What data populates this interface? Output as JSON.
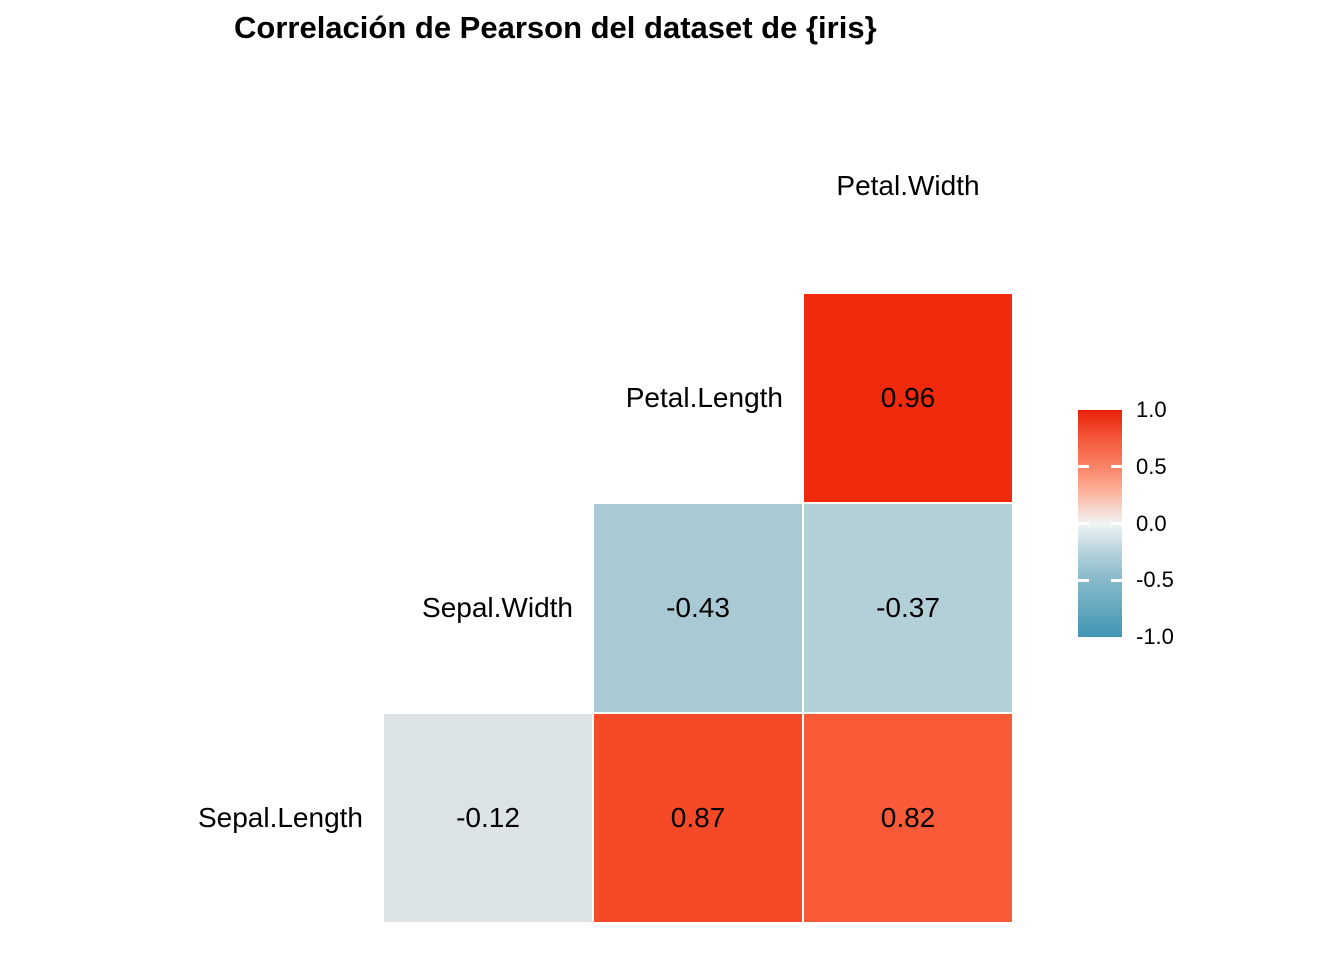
{
  "title": "Correlación de Pearson del dataset de {iris}",
  "axis_labels": {
    "top": "Petal.Width",
    "rows": [
      "Petal.Length",
      "Sepal.Width",
      "Sepal.Length"
    ]
  },
  "cells": [
    {
      "row": 0,
      "col": 2,
      "value": "0.96",
      "color": "#F12A0E"
    },
    {
      "row": 1,
      "col": 1,
      "value": "-0.43",
      "color": "#A9CAD4"
    },
    {
      "row": 1,
      "col": 2,
      "value": "-0.37",
      "color": "#B3CFD8"
    },
    {
      "row": 2,
      "col": 0,
      "value": "-0.12",
      "color": "#DBE3E6"
    },
    {
      "row": 2,
      "col": 1,
      "value": "0.87",
      "color": "#F64927"
    },
    {
      "row": 2,
      "col": 2,
      "value": "0.82",
      "color": "#F95B38"
    }
  ],
  "legend": {
    "tick_labels": [
      "1.0",
      "0.5",
      "0.0",
      "-0.5",
      "-1.0"
    ],
    "tick_color": "#FFFFFF",
    "gradient_stops": [
      "#E82109",
      "#F4573A",
      "#FB8365",
      "#FBB9A4",
      "#F1F4F5",
      "#B5D2DB",
      "#85B9CA",
      "#65A7BE",
      "#4096B4"
    ]
  },
  "colors": {
    "background": "#FFFFFF",
    "text": "#000000",
    "cell_border": "#FFFFFF"
  },
  "chart_data": {
    "type": "heatmap",
    "title": "Correlación de Pearson del dataset de {iris}",
    "subtitle": "",
    "matrix_variables": [
      "Sepal.Length",
      "Sepal.Width",
      "Petal.Length",
      "Petal.Width"
    ],
    "triangle": "lower",
    "correlation_method": "Pearson",
    "correlations": [
      {
        "x": "Sepal.Width",
        "y": "Sepal.Length",
        "value": -0.12
      },
      {
        "x": "Petal.Length",
        "y": "Sepal.Length",
        "value": 0.87
      },
      {
        "x": "Petal.Width",
        "y": "Sepal.Length",
        "value": 0.82
      },
      {
        "x": "Petal.Length",
        "y": "Sepal.Width",
        "value": -0.43
      },
      {
        "x": "Petal.Width",
        "y": "Sepal.Width",
        "value": -0.37
      },
      {
        "x": "Petal.Width",
        "y": "Petal.Length",
        "value": 0.96
      }
    ],
    "colorbar": {
      "position": "right",
      "min": -1.0,
      "max": 1.0,
      "ticks": [
        1.0,
        0.5,
        0.0,
        -0.5,
        -1.0
      ],
      "high_color": "#E82109",
      "mid_color": "#F1F4F5",
      "low_color": "#4096B4"
    },
    "grid": false,
    "legend_position": "right",
    "value_labels_shown": true
  }
}
